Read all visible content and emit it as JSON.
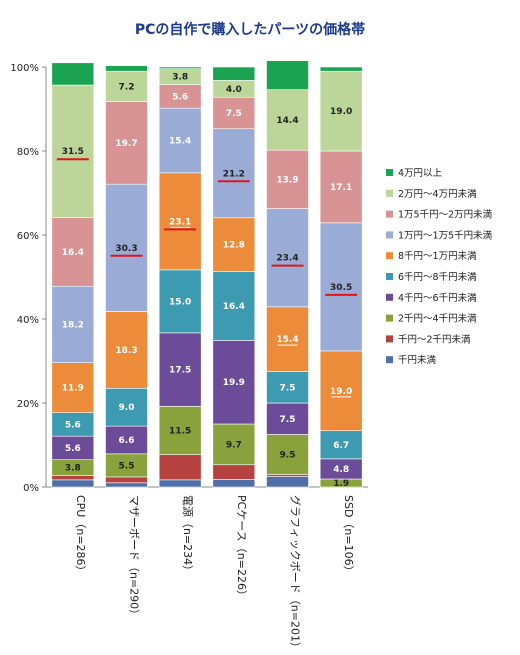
{
  "chart_data": {
    "type": "bar",
    "stacked": true,
    "percent": true,
    "title": "PCの自作で購入したパーツの価格帯",
    "xlabel": "",
    "ylabel": "",
    "ylim": [
      0,
      100
    ],
    "yticks": [
      "0%",
      "20%",
      "40%",
      "60%",
      "80%",
      "100%"
    ],
    "grid": false,
    "legend_position": "right",
    "categories": [
      "CPU（n=286）",
      "マザーボード（n=290）",
      "電源（n=234）",
      "PCケース（n=226）",
      "グラフィックボード（n=201）",
      "SSD（n=106）"
    ],
    "series": [
      {
        "name": "千円未満",
        "color": "#4f6fa8",
        "values": [
          1.7,
          1.0,
          1.7,
          1.8,
          2.5,
          0.0
        ],
        "labels": [
          "",
          "",
          "",
          "",
          "",
          ""
        ]
      },
      {
        "name": "千円〜2千円未満",
        "color": "#b5423f",
        "values": [
          1.0,
          1.4,
          6.0,
          3.5,
          0.5,
          0.0
        ],
        "labels": [
          "",
          "",
          "",
          "",
          "",
          ""
        ]
      },
      {
        "name": "2千円〜4千円未満",
        "color": "#89a23b",
        "values": [
          3.8,
          5.5,
          11.5,
          9.7,
          9.5,
          1.9
        ],
        "labels": [
          "3.8",
          "5.5",
          "11.5",
          "9.7",
          "9.5",
          "1.9"
        ]
      },
      {
        "name": "4千円〜6千円未満",
        "color": "#6c4c98",
        "values": [
          5.6,
          6.6,
          17.5,
          19.9,
          7.5,
          4.8
        ],
        "labels": [
          "5.6",
          "6.6",
          "17.5",
          "19.9",
          "7.5",
          "4.8"
        ]
      },
      {
        "name": "6千円〜8千円未満",
        "color": "#3d9bb1",
        "values": [
          5.6,
          9.0,
          15.0,
          16.4,
          7.5,
          6.7
        ],
        "labels": [
          "5.6",
          "9.0",
          "15.0",
          "16.4",
          "7.5",
          "6.7"
        ]
      },
      {
        "name": "8千円〜1万円未満",
        "color": "#ec8b3a",
        "values": [
          11.9,
          18.3,
          23.1,
          12.8,
          15.4,
          19.0
        ],
        "labels": [
          "11.9",
          "18.3",
          "23.1",
          "12.8",
          "15.4",
          "19.0"
        ]
      },
      {
        "name": "1万円〜1万5千円未満",
        "color": "#9aabd6",
        "values": [
          18.2,
          30.3,
          15.4,
          21.2,
          23.4,
          30.5
        ],
        "labels": [
          "18.2",
          "30.3",
          "15.4",
          "21.2",
          "23.4",
          "30.5"
        ]
      },
      {
        "name": "1万5千円〜2万円未満",
        "color": "#d89495",
        "values": [
          16.4,
          19.7,
          5.6,
          7.5,
          13.9,
          17.1
        ],
        "labels": [
          "16.4",
          "19.7",
          "5.6",
          "7.5",
          "13.9",
          "17.1"
        ]
      },
      {
        "name": "2万円〜4万円未満",
        "color": "#bcd69a",
        "values": [
          31.5,
          7.2,
          3.8,
          4.0,
          14.4,
          19.0
        ],
        "labels": [
          "31.5",
          "7.2",
          "3.8",
          "4.0",
          "14.4",
          "19.0"
        ]
      },
      {
        "name": "4万円以上",
        "color": "#1aa351",
        "values": [
          5.3,
          1.3,
          0.4,
          3.2,
          6.9,
          1.0
        ],
        "labels": [
          "",
          "",
          "",
          "",
          "",
          ""
        ]
      }
    ],
    "median_marks": [
      {
        "category_index": 0,
        "series_index": 8
      },
      {
        "category_index": 1,
        "series_index": 6
      },
      {
        "category_index": 2,
        "series_index": 5
      },
      {
        "category_index": 3,
        "series_index": 6
      },
      {
        "category_index": 4,
        "series_index": 6
      },
      {
        "category_index": 5,
        "series_index": 6
      }
    ],
    "underlined_labels": [
      {
        "category_index": 2,
        "series_index": 5
      },
      {
        "category_index": 4,
        "series_index": 5
      },
      {
        "category_index": 5,
        "series_index": 5
      }
    ],
    "median_mark_color": "#e0161b"
  }
}
